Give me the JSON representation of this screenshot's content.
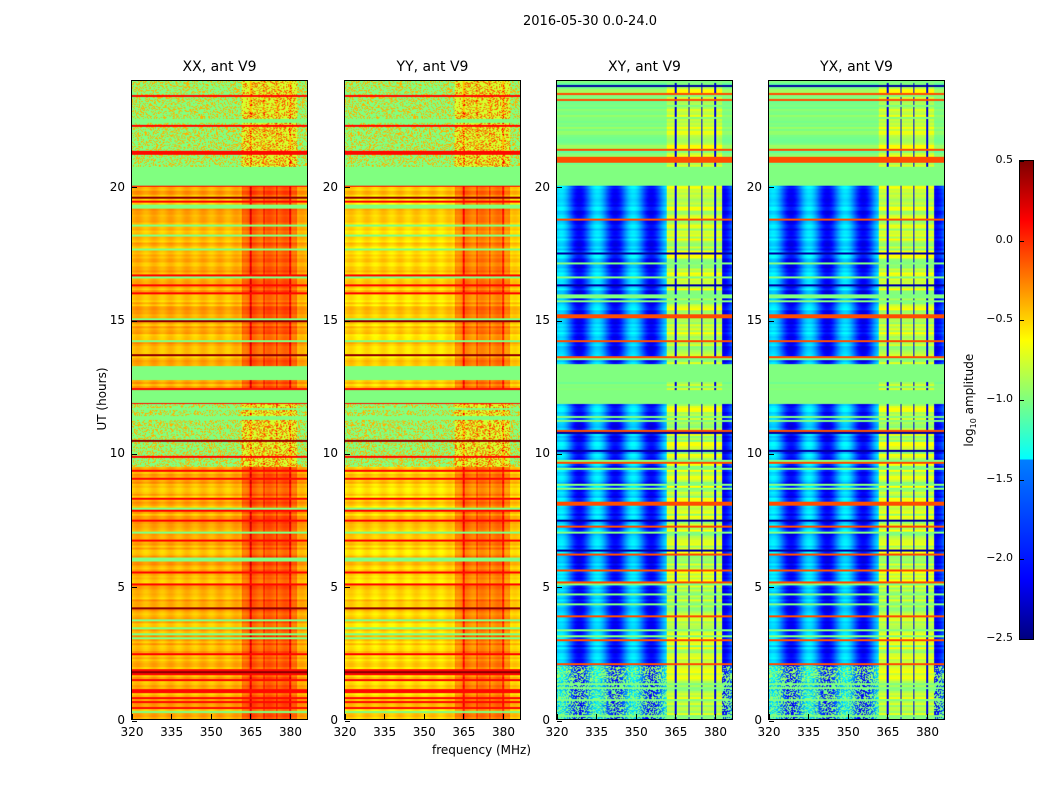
{
  "chart_data": {
    "type": "heatmap",
    "title": "2016-05-30 0.0-24.0",
    "xlabel": "frequency (MHz)",
    "ylabel": "UT (hours)",
    "xlim": [
      320,
      387
    ],
    "ylim": [
      0,
      24
    ],
    "xticks": [
      320,
      335,
      350,
      365,
      380
    ],
    "yticks": [
      0,
      5,
      10,
      15,
      20
    ],
    "panels": [
      {
        "title": "XX, ant V9",
        "pol": "XX",
        "base_log_amp": -0.4
      },
      {
        "title": "YY, ant V9",
        "pol": "YY",
        "base_log_amp": -0.5
      },
      {
        "title": "XY, ant V9",
        "pol": "XY",
        "base_log_amp": -1.8
      },
      {
        "title": "YX, ant V9",
        "pol": "YX",
        "base_log_amp": -1.8
      }
    ],
    "flagged_ut_ranges": [
      [
        20.1,
        20.8
      ],
      [
        12.8,
        13.3
      ],
      [
        11.9,
        12.4
      ]
    ],
    "rfi_band_mhz": [
      362,
      383
    ],
    "colorbar": {
      "label_prefix": "log",
      "label_sub": "10",
      "label_suffix": " amplitude",
      "range": [
        -2.5,
        0.5
      ],
      "ticks": [
        "0.5",
        "0.0",
        "−0.5",
        "−1.0",
        "−1.5",
        "−2.0",
        "−2.5"
      ],
      "tick_values": [
        0.5,
        0.0,
        -0.5,
        -1.0,
        -1.5,
        -2.0,
        -2.5
      ],
      "colormap": "jet"
    }
  }
}
